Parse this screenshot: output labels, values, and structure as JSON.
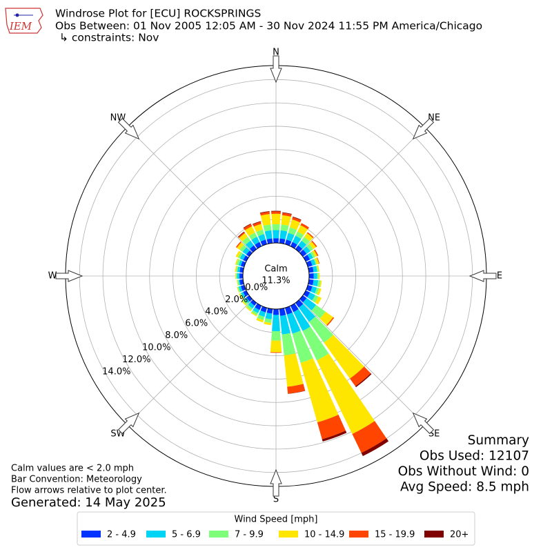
{
  "chart_data": {
    "type": "windrose",
    "logo_text": "IEM",
    "title": "Windrose Plot for [ECU] ROCKSPRINGS",
    "subtitle": "Obs Between: 01 Nov 2005 12:05 AM - 30 Nov 2024 11:55 PM America/Chicago",
    "constraints": "↳ constraints: Nov",
    "compass": [
      "N",
      "NE",
      "E",
      "SE",
      "S",
      "SW",
      "W",
      "NW"
    ],
    "calm_label": "Calm",
    "calm_value": 11.3,
    "calm_value_label": "11.3%",
    "ylim": [
      0,
      15.2
    ],
    "yticks": [
      {
        "value": 0,
        "label": "0.0%"
      },
      {
        "value": 2,
        "label": "2.0%"
      },
      {
        "value": 4,
        "label": "4.0%"
      },
      {
        "value": 6,
        "label": "6.0%"
      },
      {
        "value": 8,
        "label": "8.0%"
      },
      {
        "value": 10,
        "label": "10.0%"
      },
      {
        "value": 12,
        "label": "12.0%"
      },
      {
        "value": 14,
        "label": "14.0%"
      }
    ],
    "grid": true,
    "legend_title": "Wind Speed [mph]",
    "series": [
      {
        "name": "2 - 4.9",
        "color": "#0033ff",
        "values": [
          0.4,
          0.4,
          0.4,
          0.4,
          0.4,
          0.4,
          0.4,
          0.4,
          0.4,
          0.4,
          0.4,
          0.4,
          0.4,
          0.4,
          0.5,
          0.6,
          0.6,
          0.6,
          0.5,
          0.4,
          0.4,
          0.4,
          0.3,
          0.3,
          0.3,
          0.3,
          0.3,
          0.3,
          0.3,
          0.3,
          0.3,
          0.3,
          0.4,
          0.4,
          0.4,
          0.4
        ]
      },
      {
        "name": "5 - 6.9",
        "color": "#00d4f5",
        "values": [
          0.7,
          0.7,
          0.6,
          0.6,
          0.5,
          0.4,
          0.3,
          0.3,
          0.3,
          0.3,
          0.4,
          0.4,
          0.5,
          1.0,
          1.5,
          1.8,
          1.7,
          1.6,
          1.4,
          0.5,
          0.4,
          0.3,
          0.3,
          0.2,
          0.2,
          0.2,
          0.1,
          0.2,
          0.2,
          0.2,
          0.3,
          0.4,
          0.5,
          0.5,
          0.5,
          0.7
        ]
      },
      {
        "name": "7 - 9.9",
        "color": "#7dff7a",
        "values": [
          0.5,
          0.5,
          0.5,
          0.4,
          0.4,
          0.3,
          0.2,
          0.1,
          0.1,
          0.1,
          0.2,
          0.2,
          0.3,
          1.0,
          2.2,
          2.8,
          2.6,
          1.8,
          0.8,
          0.3,
          0.3,
          0.2,
          0.2,
          0.2,
          0.1,
          0.1,
          0.1,
          0.1,
          0.1,
          0.2,
          0.2,
          0.3,
          0.4,
          0.4,
          0.4,
          0.5
        ]
      },
      {
        "name": "10 - 14.9",
        "color": "#ffe600",
        "values": [
          0.9,
          0.8,
          0.7,
          0.6,
          0.4,
          0.3,
          0.2,
          0.2,
          0.1,
          0.1,
          0.1,
          0.2,
          0.3,
          0.8,
          3.8,
          7.0,
          5.3,
          2.7,
          1.0,
          0.2,
          0.2,
          0.1,
          0.1,
          0.1,
          0.1,
          0.05,
          0.05,
          0.05,
          0.1,
          0.1,
          0.2,
          0.3,
          0.4,
          0.6,
          0.5,
          0.9
        ]
      },
      {
        "name": "15 - 19.9",
        "color": "#ff4500",
        "values": [
          0.2,
          0.2,
          0.2,
          0.2,
          0.1,
          0.1,
          0.1,
          0.05,
          0.0,
          0.0,
          0.0,
          0.0,
          0.0,
          0.1,
          0.8,
          1.8,
          1.5,
          0.6,
          0.05,
          0.0,
          0.0,
          0.0,
          0.0,
          0.0,
          0.0,
          0.0,
          0.0,
          0.0,
          0.0,
          0.0,
          0.0,
          0.1,
          0.1,
          0.2,
          0.2,
          0.2
        ]
      },
      {
        "name": "20+",
        "color": "#800000",
        "values": [
          0.05,
          0.05,
          0.05,
          0.0,
          0.0,
          0.0,
          0.0,
          0.0,
          0.0,
          0.0,
          0.0,
          0.0,
          0.0,
          0.0,
          0.1,
          0.3,
          0.2,
          0.02,
          0.0,
          0.0,
          0.0,
          0.0,
          0.0,
          0.0,
          0.0,
          0.0,
          0.0,
          0.0,
          0.0,
          0.0,
          0.0,
          0.0,
          0.05,
          0.05,
          0.05,
          0.05
        ]
      }
    ],
    "notes": [
      "Calm values are < 2.0 mph",
      "Bar Convention: Meteorology",
      "Flow arrows relative to plot center."
    ],
    "generated": "Generated: 14 May 2025",
    "summary": [
      "Summary",
      "Obs Used: 12107",
      "Obs Without Wind: 0",
      "Avg Speed: 8.5 mph"
    ]
  }
}
